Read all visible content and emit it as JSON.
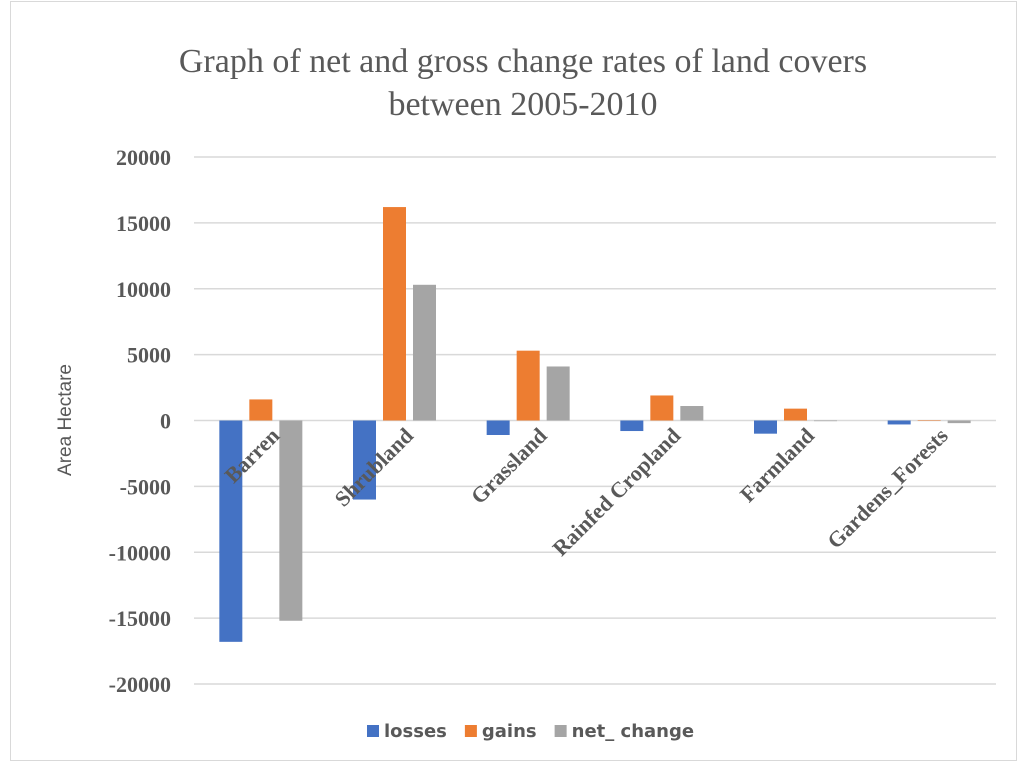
{
  "chart_data": {
    "type": "bar",
    "title": "Graph of net and gross change rates of land covers between 2005-2010",
    "title_lines": [
      "Graph of net and gross change rates of land covers",
      "between 2005-2010"
    ],
    "xlabel": "",
    "ylabel": "Area Hectare",
    "ylim": [
      -20000,
      20000
    ],
    "yticks": [
      20000,
      15000,
      10000,
      5000,
      0,
      -5000,
      -10000,
      -15000,
      -20000
    ],
    "ytick_labels": [
      "20000",
      "15000",
      "10000",
      "5000",
      "0",
      "-5000",
      "-10000",
      "-15000",
      "-20000"
    ],
    "categories": [
      "Barren",
      "Shrubland",
      "Grassland",
      "Rainfed Cropland",
      "Farmland",
      "Gardens_Forests"
    ],
    "series": [
      {
        "name": "losses",
        "color": "#4472c4",
        "values": [
          -16800,
          -6000,
          -1100,
          -800,
          -1000,
          -300
        ]
      },
      {
        "name": "gains",
        "color": "#ed7d31",
        "values": [
          1600,
          16200,
          5300,
          1900,
          900,
          0
        ]
      },
      {
        "name": "net_ change",
        "color": "#a5a5a5",
        "values": [
          -15200,
          10300,
          4100,
          1100,
          -50,
          -200
        ]
      }
    ],
    "grid": true,
    "legend_position": "bottom"
  }
}
